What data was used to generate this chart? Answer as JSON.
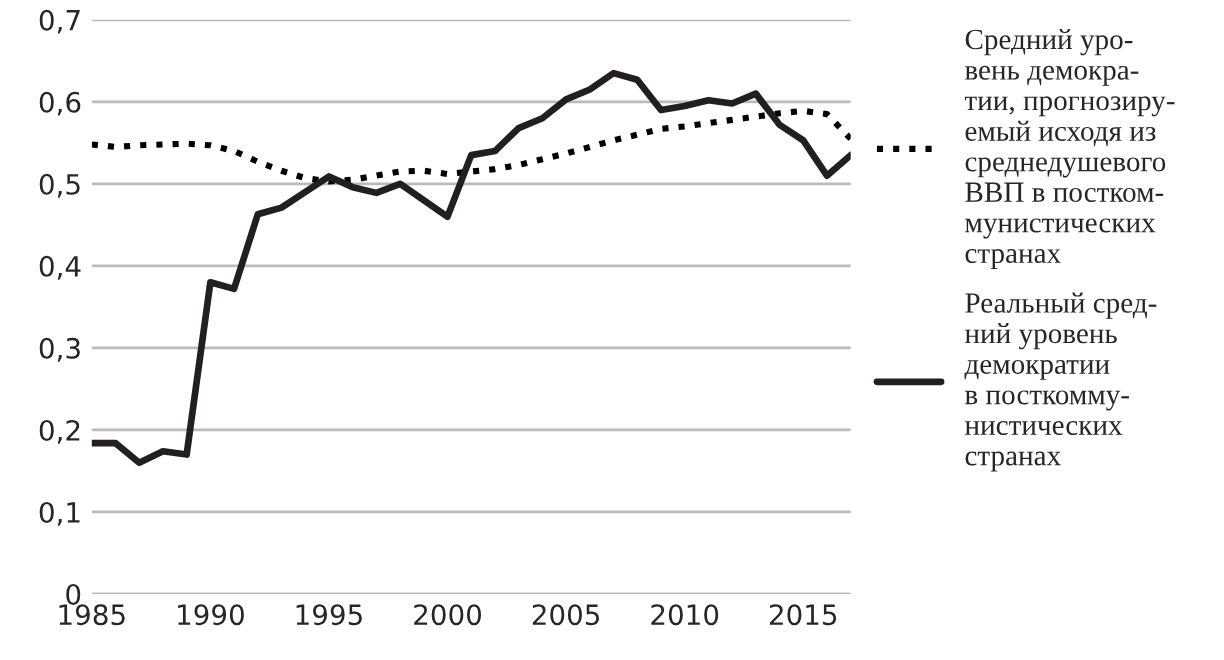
{
  "chart_data": {
    "type": "line",
    "x": [
      1985,
      1986,
      1987,
      1988,
      1989,
      1990,
      1991,
      1992,
      1993,
      1994,
      1995,
      1996,
      1997,
      1998,
      1999,
      2000,
      2001,
      2002,
      2003,
      2004,
      2005,
      2006,
      2007,
      2008,
      2009,
      2010,
      2011,
      2012,
      2013,
      2014,
      2015,
      2016,
      2017
    ],
    "series": [
      {
        "name": "Средний уро-\nвень демокра-\nтии, прогнозиру-\nемый исходя из\nсреднедушевого\nВВП в постком-\nмунистических\nстранах",
        "color": "#000000",
        "line_style": "dotted",
        "values": [
          0.548,
          0.545,
          0.547,
          0.548,
          0.549,
          0.547,
          0.54,
          0.527,
          0.516,
          0.507,
          0.503,
          0.505,
          0.51,
          0.515,
          0.516,
          0.512,
          0.515,
          0.518,
          0.523,
          0.53,
          0.537,
          0.545,
          0.553,
          0.56,
          0.567,
          0.57,
          0.574,
          0.578,
          0.582,
          0.586,
          0.589,
          0.585,
          0.555
        ]
      },
      {
        "name": "Реальный сред-\nний уровень\nдемократии\nв посткомму-\nнистических\nстранах",
        "color": "#231f20",
        "line_style": "solid",
        "values": [
          0.184,
          0.184,
          0.16,
          0.174,
          0.17,
          0.38,
          0.372,
          0.463,
          0.471,
          0.49,
          0.509,
          0.496,
          0.489,
          0.5,
          0.48,
          0.46,
          0.535,
          0.54,
          0.568,
          0.58,
          0.603,
          0.615,
          0.635,
          0.627,
          0.59,
          0.595,
          0.602,
          0.598,
          0.61,
          0.572,
          0.553,
          0.51,
          0.535
        ]
      }
    ],
    "xlim": [
      1985,
      2017
    ],
    "xticks": [
      1985,
      1990,
      1995,
      2000,
      2005,
      2010,
      2015
    ],
    "ylim": [
      0,
      0.7
    ],
    "yticks": [
      0,
      {
        "value": 0.1,
        "label": "0,1"
      },
      {
        "value": 0.2,
        "label": "0,2"
      },
      {
        "value": 0.3,
        "label": "0,3"
      },
      {
        "value": 0.4,
        "label": "0,4"
      },
      {
        "value": 0.5,
        "label": "0,5"
      },
      {
        "value": 0.6,
        "label": "0,6"
      },
      {
        "value": 0.7,
        "label": "0,7"
      }
    ],
    "grid": "y",
    "legend": "right"
  }
}
